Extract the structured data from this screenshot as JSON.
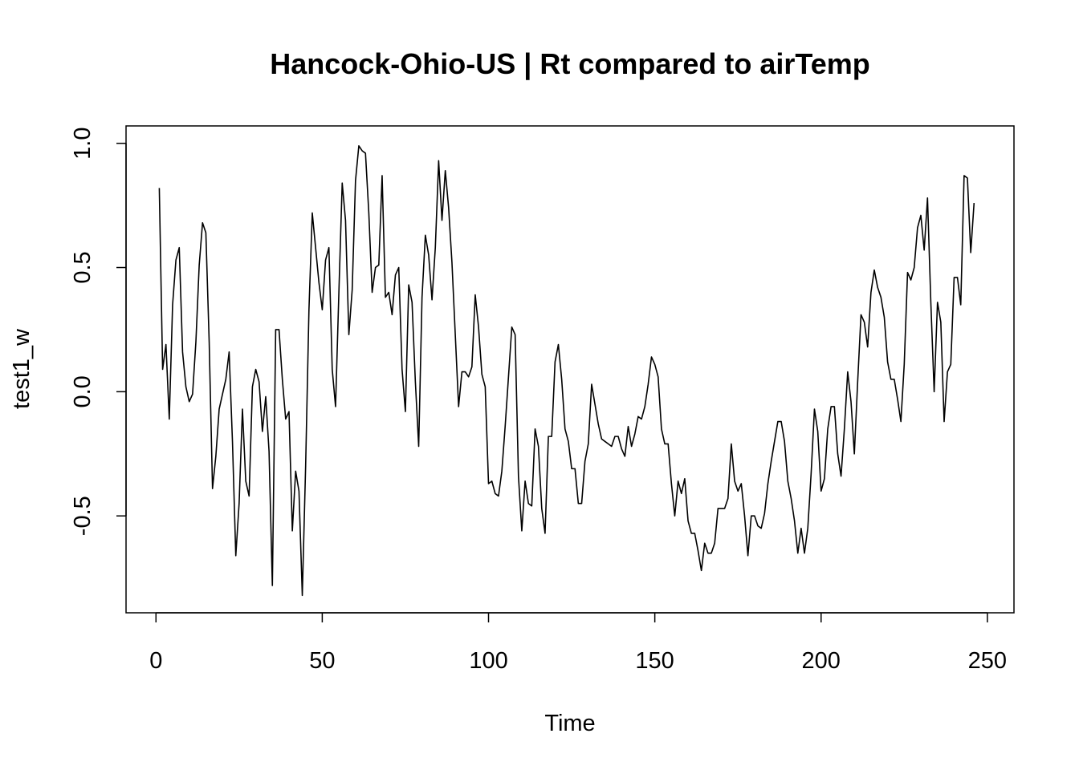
{
  "chart_data": {
    "type": "line",
    "title": "Hancock-Ohio-US | Rt compared to airTemp",
    "xlabel": "Time",
    "ylabel": "test1_w",
    "xlim": [
      -9,
      258
    ],
    "ylim": [
      -0.89,
      1.07
    ],
    "x_ticks": [
      0,
      50,
      100,
      150,
      200,
      250
    ],
    "x_tick_labels": [
      "0",
      "50",
      "100",
      "150",
      "200",
      "250"
    ],
    "y_ticks": [
      -0.5,
      0.0,
      0.5,
      1.0
    ],
    "y_tick_labels": [
      "-0.5",
      "0.0",
      "0.5",
      "1.0"
    ],
    "grid": false,
    "box": true,
    "series": [
      {
        "color": "#000000",
        "x_start": 1,
        "x_step": 1,
        "values": [
          0.82,
          0.09,
          0.19,
          -0.11,
          0.35,
          0.53,
          0.58,
          0.16,
          0.02,
          -0.04,
          -0.01,
          0.2,
          0.51,
          0.68,
          0.64,
          0.2,
          -0.39,
          -0.26,
          -0.07,
          -0.01,
          0.05,
          0.16,
          -0.2,
          -0.66,
          -0.45,
          -0.07,
          -0.36,
          -0.42,
          0.02,
          0.09,
          0.04,
          -0.16,
          -0.02,
          -0.24,
          -0.78,
          0.25,
          0.25,
          0.05,
          -0.11,
          -0.08,
          -0.56,
          -0.32,
          -0.4,
          -0.82,
          -0.3,
          0.33,
          0.72,
          0.58,
          0.44,
          0.33,
          0.53,
          0.58,
          0.09,
          -0.06,
          0.4,
          0.84,
          0.69,
          0.23,
          0.41,
          0.85,
          0.99,
          0.97,
          0.96,
          0.72,
          0.4,
          0.5,
          0.51,
          0.87,
          0.38,
          0.4,
          0.31,
          0.47,
          0.5,
          0.09,
          -0.08,
          0.43,
          0.36,
          0.04,
          -0.22,
          0.38,
          0.63,
          0.55,
          0.37,
          0.58,
          0.93,
          0.69,
          0.89,
          0.74,
          0.52,
          0.23,
          -0.06,
          0.08,
          0.08,
          0.06,
          0.1,
          0.39,
          0.26,
          0.07,
          0.02,
          -0.37,
          -0.36,
          -0.41,
          -0.42,
          -0.32,
          -0.14,
          0.06,
          0.26,
          0.23,
          -0.34,
          -0.56,
          -0.36,
          -0.45,
          -0.46,
          -0.15,
          -0.22,
          -0.47,
          -0.57,
          -0.18,
          -0.18,
          0.12,
          0.19,
          0.05,
          -0.15,
          -0.2,
          -0.31,
          -0.31,
          -0.45,
          -0.45,
          -0.28,
          -0.21,
          0.03,
          -0.05,
          -0.13,
          -0.19,
          -0.2,
          -0.21,
          -0.22,
          -0.18,
          -0.18,
          -0.23,
          -0.26,
          -0.14,
          -0.22,
          -0.17,
          -0.1,
          -0.11,
          -0.06,
          0.03,
          0.14,
          0.11,
          0.06,
          -0.15,
          -0.21,
          -0.21,
          -0.37,
          -0.5,
          -0.36,
          -0.41,
          -0.35,
          -0.52,
          -0.57,
          -0.57,
          -0.64,
          -0.72,
          -0.61,
          -0.65,
          -0.65,
          -0.61,
          -0.47,
          -0.47,
          -0.47,
          -0.43,
          -0.21,
          -0.36,
          -0.4,
          -0.37,
          -0.5,
          -0.66,
          -0.5,
          -0.5,
          -0.54,
          -0.55,
          -0.49,
          -0.37,
          -0.28,
          -0.2,
          -0.12,
          -0.12,
          -0.2,
          -0.36,
          -0.43,
          -0.52,
          -0.65,
          -0.55,
          -0.65,
          -0.55,
          -0.33,
          -0.07,
          -0.16,
          -0.4,
          -0.35,
          -0.15,
          -0.06,
          -0.06,
          -0.25,
          -0.34,
          -0.15,
          0.08,
          -0.04,
          -0.25,
          0.04,
          0.31,
          0.28,
          0.18,
          0.4,
          0.49,
          0.42,
          0.38,
          0.3,
          0.12,
          0.05,
          0.05,
          -0.03,
          -0.12,
          0.11,
          0.48,
          0.45,
          0.5,
          0.66,
          0.71,
          0.57,
          0.78,
          0.36,
          0.0,
          0.36,
          0.28,
          -0.12,
          0.08,
          0.11,
          0.46,
          0.46,
          0.35,
          0.87,
          0.86,
          0.56,
          0.76
        ]
      }
    ]
  }
}
